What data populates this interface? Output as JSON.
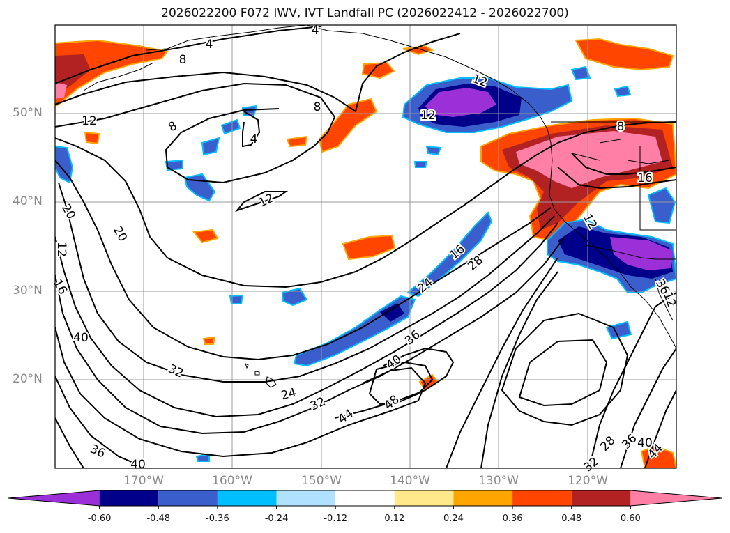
{
  "title": "2026022200 F072 IWV, IVT Landfall PC (2026022412 - 2026022700)",
  "latitude_labels": [
    "50°N",
    "40°N",
    "30°N",
    "20°N"
  ],
  "longitude_labels": [
    "170°W",
    "160°W",
    "150°W",
    "140°W",
    "130°W",
    "120°W"
  ],
  "contour_labels": [
    "4",
    "4",
    "8",
    "8",
    "12",
    "4",
    "8",
    "12",
    "12",
    "12",
    "8",
    "16",
    "20",
    "20",
    "12",
    "16",
    "40",
    "32",
    "24",
    "32",
    "44",
    "48",
    "40",
    "36",
    "16",
    "24",
    "28",
    "36",
    "28",
    "36",
    "40",
    "44",
    "40",
    "36",
    "12",
    "12",
    "32"
  ],
  "colorbar": {
    "ticks": [
      "-0.60",
      "-0.48",
      "-0.36",
      "-0.24",
      "-0.12",
      "0.12",
      "0.24",
      "0.36",
      "0.48",
      "0.60"
    ],
    "colors": [
      "#9b30d9",
      "#00008b",
      "#3a5fcd",
      "#00bfff",
      "#b0e2ff",
      "#ffffff",
      "#ffe98a",
      "#ffa500",
      "#ff4500",
      "#b22222",
      "#ff7fa6"
    ]
  }
}
